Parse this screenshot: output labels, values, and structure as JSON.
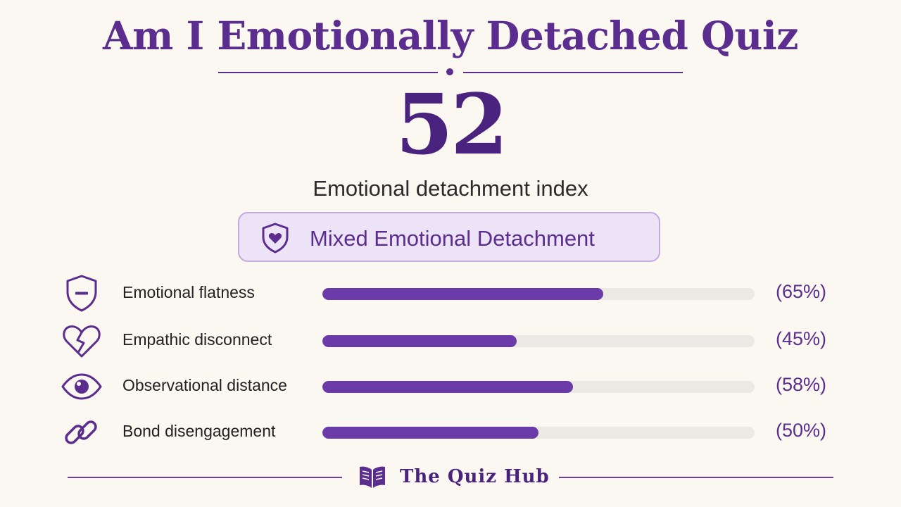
{
  "title": "Am I Emotionally Detached Quiz",
  "score": {
    "value": "52",
    "label": "Emotional detachment index"
  },
  "result_badge": {
    "icon": "shield-heart-icon",
    "text": "Mixed Emotional Detachment"
  },
  "metrics": [
    {
      "icon": "shield-minus-icon",
      "label": "Emotional flatness",
      "value": 65,
      "percent_text": "(65%)"
    },
    {
      "icon": "broken-heart-icon",
      "label": "Empathic disconnect",
      "value": 45,
      "percent_text": "(45%)"
    },
    {
      "icon": "eye-icon",
      "label": "Observational distance",
      "value": 58,
      "percent_text": "(58%)"
    },
    {
      "icon": "chain-link-icon",
      "label": "Bond disengagement",
      "value": 50,
      "percent_text": "(50%)"
    }
  ],
  "footer": {
    "icon": "open-book-icon",
    "brand": "The Quiz Hub"
  },
  "colors": {
    "primary": "#5b2d8e",
    "bar_fill": "#6a3aa8",
    "bar_track": "#ece8e3",
    "badge_bg": "#ede3f6",
    "background": "#fbf7f1"
  }
}
